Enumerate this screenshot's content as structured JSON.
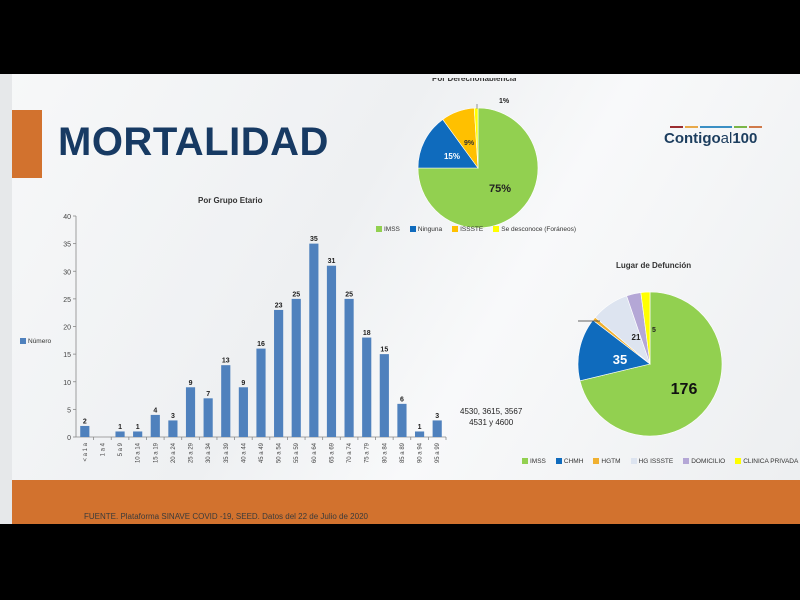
{
  "slide": {
    "title": "MORTALIDAD",
    "source": "FUENTE. Plataforma SINAVE COVID -19, SEED. Datos del 22 de Julio de 2020",
    "note": "4530, 3615, 3567\n4531 y 4600",
    "logo": {
      "main": "Contigo",
      "al": "al",
      "num": "100"
    },
    "colors": {
      "accent": "#d2722e",
      "title": "#173a63",
      "footer": "#d2722e",
      "bar": "#4f81bd"
    }
  },
  "chart_data": [
    {
      "type": "bar",
      "title": "Por Grupo Etario",
      "legend": "Número",
      "legend_position": "left",
      "categories": [
        "< a 1 a",
        "1 a 4",
        "5 a 9",
        "10 a 14",
        "15 a 19",
        "20 a 24",
        "25 a 29",
        "30 a 34",
        "35 a 39",
        "40 a 44",
        "45 a 49",
        "50 a 54",
        "55 a 59",
        "60 a 64",
        "65 a 69",
        "70 a 74",
        "75 a 79",
        "80 a 84",
        "85 a 89",
        "90 a 94",
        "95 a 99"
      ],
      "values": [
        2,
        0,
        1,
        1,
        4,
        3,
        9,
        7,
        13,
        9,
        16,
        23,
        25,
        35,
        31,
        25,
        18,
        15,
        6,
        1,
        3
      ],
      "data_labels": [
        "2",
        "",
        "1",
        "1",
        "4",
        "3",
        "9",
        "7",
        "13",
        "9",
        "16",
        "23",
        "25",
        "35",
        "31",
        "25",
        "18",
        "15",
        "6",
        "1",
        "3"
      ],
      "ylim": [
        0,
        40
      ],
      "yticks": [
        "0",
        "5",
        "10",
        "15",
        "20",
        "25",
        "30",
        "35",
        "40"
      ],
      "grid": false
    },
    {
      "type": "pie",
      "title": "Por Derechohabiencia",
      "slices": [
        {
          "name": "IMSS",
          "value": 75,
          "label": "75%",
          "color": "#92d050"
        },
        {
          "name": "Ninguna",
          "value": 15,
          "label": "15%",
          "color": "#0f6bbd"
        },
        {
          "name": "ISSSTE",
          "value": 9,
          "label": "9%",
          "color": "#ffc000"
        },
        {
          "name": "Se desconoce (Foráneos)",
          "value": 1,
          "label": "1%",
          "color": "#ffff00"
        }
      ],
      "legend_position": "bottom"
    },
    {
      "type": "pie",
      "title": "Lugar de Defunción",
      "slices": [
        {
          "name": "IMSS",
          "value": 176,
          "label": "176",
          "color": "#92d050"
        },
        {
          "name": "CHMH",
          "value": 35,
          "label": "35",
          "color": "#0f6bbd"
        },
        {
          "name": "HGTM",
          "value": 2,
          "label": "2",
          "color": "#f0b030"
        },
        {
          "name": "HG ISSSTE",
          "value": 21,
          "label": "21",
          "color": "#dde4f0"
        },
        {
          "name": "DOMICILIO",
          "value": 8,
          "label": "8",
          "color": "#b4a7d6"
        },
        {
          "name": "CLINICA PRIVADA",
          "value": 5,
          "label": "5",
          "color": "#ffff00"
        }
      ],
      "legend_position": "bottom"
    }
  ]
}
